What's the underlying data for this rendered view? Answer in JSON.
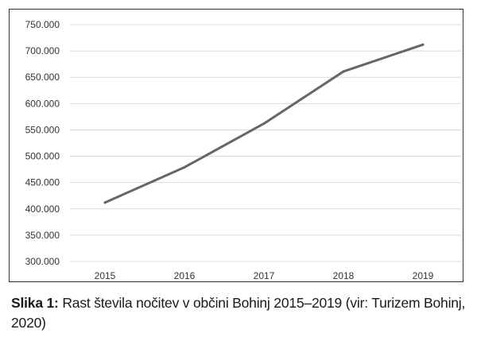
{
  "caption": {
    "label": "Slika 1:",
    "text": "Rast števila nočitev v občini Bohinj 2015–2019 (vir: Turizem Bohinj, 2020)"
  },
  "chart_data": {
    "type": "line",
    "title": "",
    "xlabel": "",
    "ylabel": "",
    "categories": [
      "2015",
      "2016",
      "2017",
      "2018",
      "2019"
    ],
    "series": [
      {
        "values": [
          412000,
          479000,
          562000,
          661000,
          712000
        ],
        "color": "#666666"
      }
    ],
    "ylim": [
      300000,
      750000
    ],
    "yticks": [
      300000,
      350000,
      400000,
      450000,
      500000,
      550000,
      600000,
      650000,
      700000,
      750000
    ],
    "ytick_labels": [
      "300.000",
      "350.000",
      "400.000",
      "450.000",
      "500.000",
      "550.000",
      "600.000",
      "650.000",
      "700.000",
      "750.000"
    ],
    "grid": true,
    "grid_color": "#d9d9d9",
    "legend": "none"
  }
}
